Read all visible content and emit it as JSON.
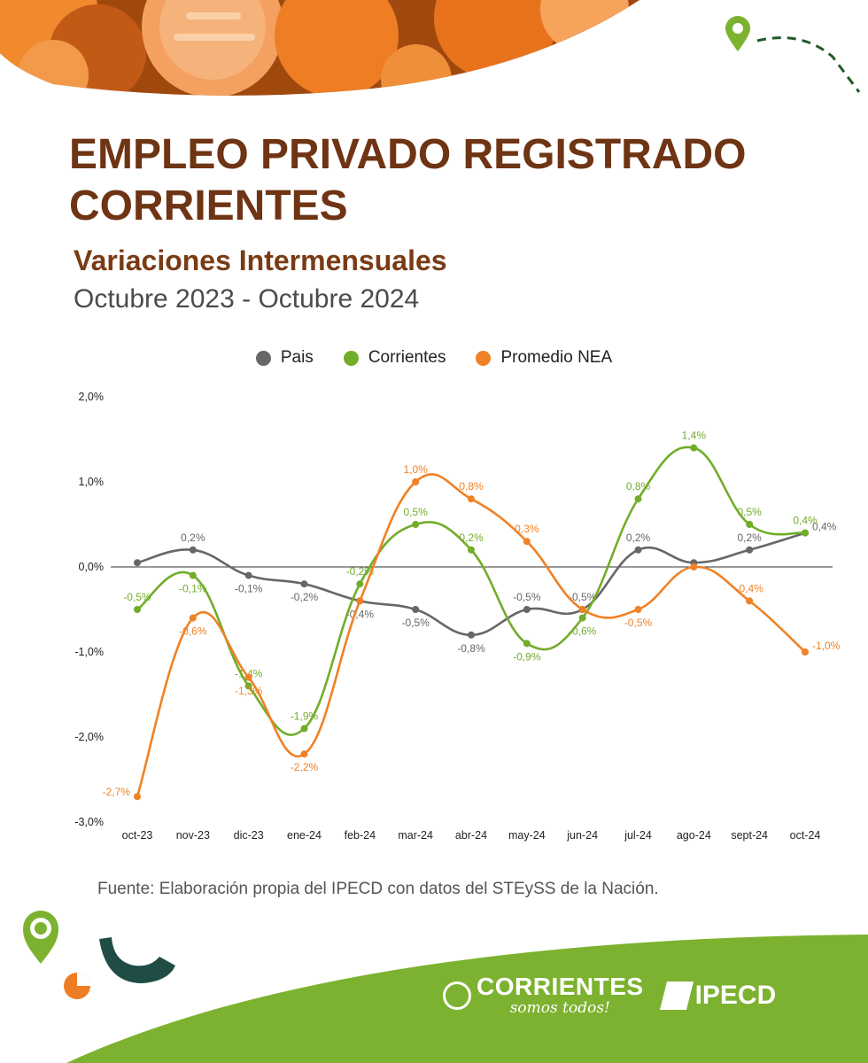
{
  "header": {
    "title": "EMPLEO PRIVADO REGISTRADO CORRIENTES",
    "subtitle": "Variaciones Intermensuales",
    "period": "Octubre 2023 - Octubre 2024"
  },
  "colors": {
    "title": "#6e3413",
    "pais": "#676767",
    "corrientes": "#72ad2a",
    "nea": "#f08125",
    "footer_green": "#7cb22f",
    "header_orange": "#ee7d23"
  },
  "chart_data": {
    "type": "line",
    "categories": [
      "oct-23",
      "nov-23",
      "dic-23",
      "ene-24",
      "feb-24",
      "mar-24",
      "abr-24",
      "may-24",
      "jun-24",
      "jul-24",
      "ago-24",
      "sept-24",
      "oct-24"
    ],
    "series": [
      {
        "name": "Pais",
        "values": [
          0.05,
          0.2,
          -0.1,
          -0.2,
          -0.4,
          -0.5,
          -0.8,
          -0.5,
          -0.5,
          0.2,
          0.05,
          0.2,
          0.4
        ],
        "labels": [
          "",
          "0,2%",
          "-0,1%",
          "-0,2%",
          "-0,4%",
          "-0,5%",
          "-0,8%",
          "-0,5%",
          "-0,5%",
          "0,2%",
          "",
          "0,2%",
          "0,4%"
        ]
      },
      {
        "name": "Corrientes",
        "values": [
          -0.5,
          -0.1,
          -1.4,
          -1.9,
          -0.2,
          0.5,
          0.2,
          -0.9,
          -0.6,
          0.8,
          1.4,
          0.5,
          0.4
        ],
        "labels": [
          "-0,5%",
          "-0,1%",
          "-1,4%",
          "-1,9%",
          "-0,2%",
          "0,5%",
          "0,2%",
          "-0,9%",
          "-0,6%",
          "0,8%",
          "1,4%",
          "0,5%",
          "0,4%"
        ]
      },
      {
        "name": "Promedio NEA",
        "values": [
          -2.7,
          -0.6,
          -1.3,
          -2.2,
          -0.4,
          1.0,
          0.8,
          0.3,
          -0.5,
          -0.5,
          0.0,
          -0.4,
          -1.0
        ],
        "labels": [
          "-2,7%",
          "-0,6%",
          "-1,3%",
          "-2,2%",
          "",
          "1,0%",
          "0,8%",
          "0,3%",
          "",
          "-0,5%",
          "",
          "-0,4%",
          "-1,0%"
        ]
      }
    ],
    "ylim": [
      -3,
      2
    ],
    "yticks": [
      2,
      1,
      0,
      -1,
      -2,
      -3
    ],
    "ytick_labels": [
      "2,0%",
      "1,0%",
      "0,0%",
      "-1,0%",
      "-2,0%",
      "-3,0%"
    ],
    "grid": false,
    "legend": "top-center"
  },
  "footer": {
    "source": "Fuente:  Elaboración propia del IPECD con datos del STEySS de la Nación.",
    "brand": "CORRIENTES",
    "brand_tagline": "somos todos!",
    "institute": "IPECD"
  }
}
